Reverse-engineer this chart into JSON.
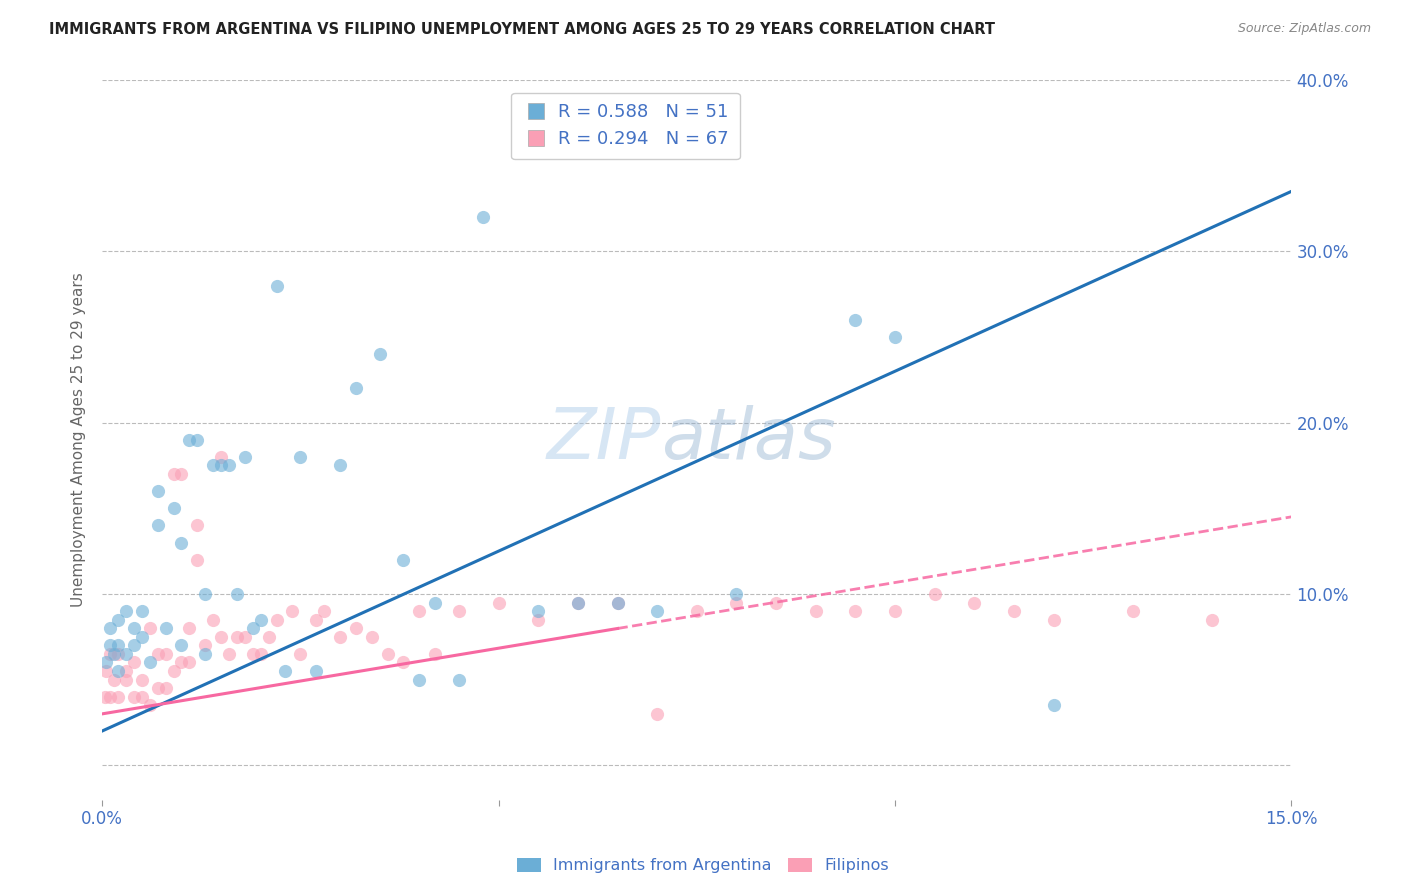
{
  "title": "IMMIGRANTS FROM ARGENTINA VS FILIPINO UNEMPLOYMENT AMONG AGES 25 TO 29 YEARS CORRELATION CHART",
  "source": "Source: ZipAtlas.com",
  "ylabel": "Unemployment Among Ages 25 to 29 years",
  "xlim": [
    0.0,
    0.15
  ],
  "ylim": [
    -0.02,
    0.4
  ],
  "ylim_display": [
    0.0,
    0.4
  ],
  "xticks": [
    0.0,
    0.05,
    0.1,
    0.15
  ],
  "yticks": [
    0.0,
    0.1,
    0.2,
    0.3,
    0.4
  ],
  "ytick_labels": [
    "",
    "10.0%",
    "20.0%",
    "30.0%",
    "40.0%"
  ],
  "xtick_labels": [
    "0.0%",
    "",
    "",
    "15.0%"
  ],
  "legend_label1": "Immigrants from Argentina",
  "legend_label2": "Filipinos",
  "R1": 0.588,
  "N1": 51,
  "R2": 0.294,
  "N2": 67,
  "color_blue": "#6baed6",
  "color_pink": "#fa9fb5",
  "color_blue_line": "#2171b5",
  "color_pink_line": "#f768a1",
  "color_blue_text": "#4472C4",
  "scatter_alpha": 0.6,
  "scatter_size": 90,
  "blue_line_x0": 0.0,
  "blue_line_y0": 0.02,
  "blue_line_x1": 0.15,
  "blue_line_y1": 0.335,
  "pink_line_x0": 0.0,
  "pink_line_y0": 0.03,
  "pink_line_x1": 0.15,
  "pink_line_y1": 0.145,
  "blue_scatter_x": [
    0.0005,
    0.001,
    0.001,
    0.0015,
    0.002,
    0.002,
    0.002,
    0.003,
    0.003,
    0.004,
    0.004,
    0.005,
    0.005,
    0.006,
    0.007,
    0.007,
    0.008,
    0.009,
    0.01,
    0.01,
    0.011,
    0.012,
    0.013,
    0.013,
    0.014,
    0.015,
    0.016,
    0.017,
    0.018,
    0.019,
    0.02,
    0.022,
    0.023,
    0.025,
    0.027,
    0.03,
    0.032,
    0.035,
    0.038,
    0.04,
    0.042,
    0.045,
    0.048,
    0.055,
    0.06,
    0.065,
    0.07,
    0.08,
    0.095,
    0.1,
    0.12
  ],
  "blue_scatter_y": [
    0.06,
    0.07,
    0.08,
    0.065,
    0.055,
    0.07,
    0.085,
    0.065,
    0.09,
    0.07,
    0.08,
    0.075,
    0.09,
    0.06,
    0.14,
    0.16,
    0.08,
    0.15,
    0.13,
    0.07,
    0.19,
    0.19,
    0.1,
    0.065,
    0.175,
    0.175,
    0.175,
    0.1,
    0.18,
    0.08,
    0.085,
    0.28,
    0.055,
    0.18,
    0.055,
    0.175,
    0.22,
    0.24,
    0.12,
    0.05,
    0.095,
    0.05,
    0.32,
    0.09,
    0.095,
    0.095,
    0.09,
    0.1,
    0.26,
    0.25,
    0.035
  ],
  "pink_scatter_x": [
    0.0003,
    0.0005,
    0.001,
    0.001,
    0.0015,
    0.002,
    0.002,
    0.003,
    0.003,
    0.004,
    0.004,
    0.005,
    0.005,
    0.006,
    0.006,
    0.007,
    0.007,
    0.008,
    0.008,
    0.009,
    0.009,
    0.01,
    0.01,
    0.011,
    0.011,
    0.012,
    0.012,
    0.013,
    0.014,
    0.015,
    0.015,
    0.016,
    0.017,
    0.018,
    0.019,
    0.02,
    0.021,
    0.022,
    0.024,
    0.025,
    0.027,
    0.028,
    0.03,
    0.032,
    0.034,
    0.036,
    0.038,
    0.04,
    0.042,
    0.045,
    0.05,
    0.055,
    0.06,
    0.065,
    0.07,
    0.075,
    0.08,
    0.085,
    0.09,
    0.095,
    0.1,
    0.105,
    0.11,
    0.115,
    0.12,
    0.13,
    0.14
  ],
  "pink_scatter_y": [
    0.04,
    0.055,
    0.04,
    0.065,
    0.05,
    0.04,
    0.065,
    0.05,
    0.055,
    0.06,
    0.04,
    0.04,
    0.05,
    0.035,
    0.08,
    0.045,
    0.065,
    0.045,
    0.065,
    0.055,
    0.17,
    0.06,
    0.17,
    0.06,
    0.08,
    0.12,
    0.14,
    0.07,
    0.085,
    0.075,
    0.18,
    0.065,
    0.075,
    0.075,
    0.065,
    0.065,
    0.075,
    0.085,
    0.09,
    0.065,
    0.085,
    0.09,
    0.075,
    0.08,
    0.075,
    0.065,
    0.06,
    0.09,
    0.065,
    0.09,
    0.095,
    0.085,
    0.095,
    0.095,
    0.03,
    0.09,
    0.095,
    0.095,
    0.09,
    0.09,
    0.09,
    0.1,
    0.095,
    0.09,
    0.085,
    0.09,
    0.085
  ]
}
